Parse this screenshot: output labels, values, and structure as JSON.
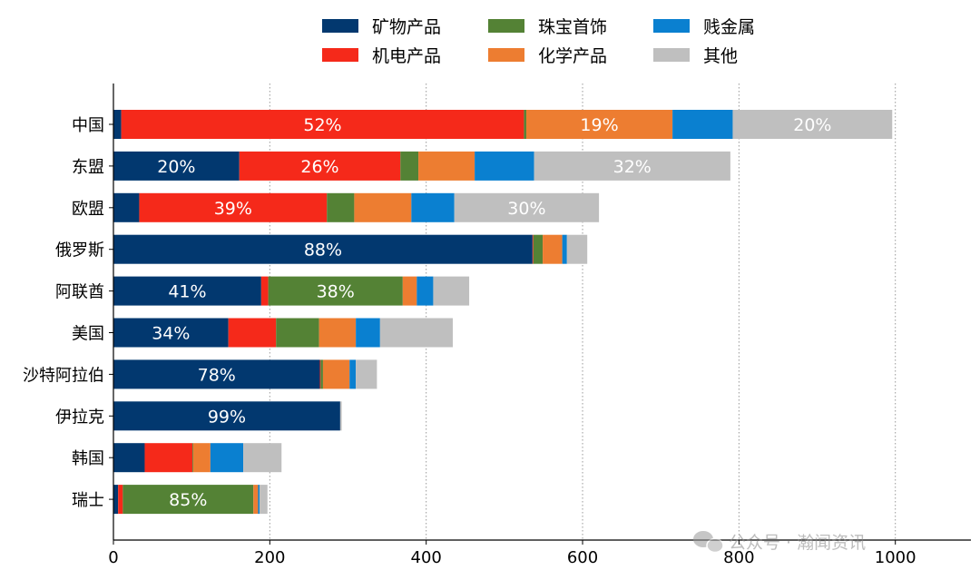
{
  "chart_data": {
    "type": "bar",
    "orientation": "horizontal",
    "stacked": true,
    "title": "",
    "xlabel": "",
    "ylabel": "",
    "xlim": [
      0,
      1095
    ],
    "xticks": [
      0,
      200,
      400,
      600,
      800,
      1000
    ],
    "grid": "x-dotted",
    "legend_position": "top-center",
    "categories": [
      "中国",
      "东盟",
      "欧盟",
      "俄罗斯",
      "阿联酋",
      "美国",
      "沙特阿拉伯",
      "伊拉克",
      "韩国",
      "瑞士"
    ],
    "series": [
      {
        "name": "矿物产品",
        "color": "#02386f",
        "values": [
          10,
          161,
          33,
          536,
          189,
          147,
          264,
          290,
          40,
          6
        ]
      },
      {
        "name": "机电产品",
        "color": "#f5291a",
        "values": [
          515,
          206,
          240,
          1,
          9,
          61,
          1,
          0,
          61,
          6
        ]
      },
      {
        "name": "珠宝首饰",
        "color": "#548235",
        "values": [
          3,
          23,
          35,
          12,
          172,
          55,
          3,
          0,
          1,
          167
        ]
      },
      {
        "name": "化学产品",
        "color": "#ed7d31",
        "values": [
          187,
          72,
          73,
          25,
          18,
          47,
          34,
          0,
          22,
          6
        ]
      },
      {
        "name": "贱金属",
        "color": "#0a80d0",
        "values": [
          77,
          76,
          55,
          6,
          21,
          31,
          8,
          0,
          42,
          2
        ]
      },
      {
        "name": "其他",
        "color": "#bfbfbf",
        "values": [
          204,
          251,
          185,
          26,
          46,
          93,
          27,
          2,
          49,
          10
        ]
      }
    ],
    "labels": [
      [
        null,
        "52%",
        null,
        "19%",
        null,
        "20%"
      ],
      [
        "20%",
        "26%",
        null,
        null,
        null,
        "32%"
      ],
      [
        null,
        "39%",
        null,
        null,
        null,
        "30%"
      ],
      [
        "88%",
        null,
        null,
        null,
        null,
        null
      ],
      [
        "41%",
        null,
        "38%",
        null,
        null,
        null
      ],
      [
        "34%",
        null,
        null,
        null,
        null,
        null
      ],
      [
        "78%",
        null,
        null,
        null,
        null,
        null
      ],
      [
        "99%",
        null,
        null,
        null,
        null,
        null
      ],
      [
        null,
        null,
        null,
        null,
        null,
        null
      ],
      [
        null,
        null,
        "85%",
        null,
        null,
        null
      ]
    ]
  },
  "watermark": "公众号 · 瀚闻资讯"
}
